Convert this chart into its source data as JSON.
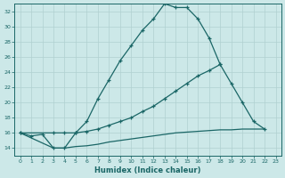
{
  "xlabel": "Humidex (Indice chaleur)",
  "bg_color": "#cce8e8",
  "line_color": "#1a6666",
  "grid_color": "#b0d0d0",
  "xlim": [
    -0.5,
    23.5
  ],
  "ylim": [
    13,
    33
  ],
  "yticks": [
    14,
    16,
    18,
    20,
    22,
    24,
    26,
    28,
    30,
    32
  ],
  "xticks": [
    0,
    1,
    2,
    3,
    4,
    5,
    6,
    7,
    8,
    9,
    10,
    11,
    12,
    13,
    14,
    15,
    16,
    17,
    18,
    19,
    20,
    21,
    22,
    23
  ],
  "curve1_x": [
    0,
    1,
    2,
    3,
    4,
    5,
    6,
    7,
    8,
    9,
    10,
    11,
    12,
    13,
    14,
    15,
    16,
    17,
    18
  ],
  "curve1_y": [
    16.0,
    15.6,
    15.8,
    14.0,
    14.0,
    16.0,
    17.5,
    20.5,
    23.0,
    25.5,
    27.5,
    29.5,
    31.0,
    33.0,
    32.5,
    32.5,
    31.0,
    28.5,
    25.0
  ],
  "curve2_x": [
    0,
    3,
    4,
    5,
    6,
    7,
    8,
    9,
    10,
    11,
    12,
    13,
    14,
    15,
    16,
    17,
    18,
    19,
    20,
    21,
    22
  ],
  "curve2_y": [
    16.0,
    16.0,
    16.0,
    16.0,
    16.2,
    16.5,
    17.0,
    17.5,
    18.0,
    18.8,
    19.5,
    20.5,
    21.5,
    22.5,
    23.5,
    24.2,
    25.0,
    22.5,
    20.0,
    17.5,
    16.5
  ],
  "curve3_x": [
    0,
    3,
    4,
    5,
    6,
    7,
    8,
    9,
    10,
    11,
    12,
    13,
    14,
    15,
    16,
    17,
    18,
    19,
    20,
    21,
    22
  ],
  "curve3_y": [
    16.0,
    14.0,
    14.0,
    14.2,
    14.3,
    14.5,
    14.8,
    15.0,
    15.2,
    15.4,
    15.6,
    15.8,
    16.0,
    16.1,
    16.2,
    16.3,
    16.4,
    16.4,
    16.5,
    16.5,
    16.5
  ]
}
